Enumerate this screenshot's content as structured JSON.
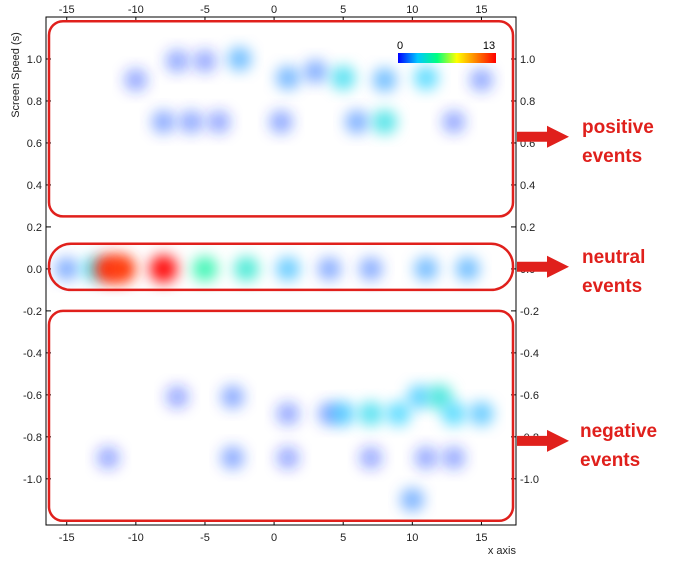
{
  "chart_data": {
    "type": "heatmap",
    "xlabel": "x axis",
    "ylabel": "Screen Speed (s)",
    "xlim": [
      -16.5,
      17.5
    ],
    "ylim": [
      -1.22,
      1.2
    ],
    "x_ticks": [
      -15,
      -10,
      -5,
      0,
      5,
      10,
      15
    ],
    "y_ticks": [
      1.0,
      0.8,
      0.6,
      0.4,
      0.2,
      0.0,
      -0.2,
      -0.4,
      -0.6,
      -0.8,
      -1.0
    ],
    "colorbar": {
      "min": 0,
      "max": 13,
      "min_label": "0",
      "max_label": "13",
      "colors": [
        "#0000ff",
        "#00c8ff",
        "#00ff80",
        "#ffff00",
        "#ff8000",
        "#ff0000"
      ]
    },
    "regions": [
      {
        "name": "positive",
        "label_lines": [
          "positive",
          "events"
        ],
        "y_range": [
          0.25,
          1.18
        ]
      },
      {
        "name": "neutral",
        "label_lines": [
          "neutral",
          "events"
        ],
        "y_range": [
          -0.1,
          0.12
        ]
      },
      {
        "name": "negative",
        "label_lines": [
          "negative",
          "events"
        ],
        "y_range": [
          -1.2,
          -0.2
        ]
      }
    ],
    "annotation_color": "#e0201c",
    "blobs": [
      {
        "x": -10,
        "y": 0.9,
        "value": 0.6
      },
      {
        "x": -7,
        "y": 0.99,
        "value": 0.7
      },
      {
        "x": -5,
        "y": 0.99,
        "value": 0.6
      },
      {
        "x": -2.5,
        "y": 1.0,
        "value": 1.8
      },
      {
        "x": 1,
        "y": 0.91,
        "value": 1.6
      },
      {
        "x": 3,
        "y": 0.94,
        "value": 1.2
      },
      {
        "x": 5,
        "y": 0.91,
        "value": 3.0
      },
      {
        "x": 8,
        "y": 0.9,
        "value": 1.8
      },
      {
        "x": 11,
        "y": 0.91,
        "value": 2.6
      },
      {
        "x": 15,
        "y": 0.9,
        "value": 0.7
      },
      {
        "x": -8,
        "y": 0.7,
        "value": 0.9
      },
      {
        "x": -6,
        "y": 0.7,
        "value": 0.8
      },
      {
        "x": -4,
        "y": 0.7,
        "value": 0.6
      },
      {
        "x": 0.5,
        "y": 0.7,
        "value": 0.8
      },
      {
        "x": 6,
        "y": 0.7,
        "value": 1.3
      },
      {
        "x": 8,
        "y": 0.7,
        "value": 3.3
      },
      {
        "x": 13,
        "y": 0.7,
        "value": 0.6
      },
      {
        "x": -15,
        "y": 0.0,
        "value": 1.2
      },
      {
        "x": -13,
        "y": 0.0,
        "value": 3.0
      },
      {
        "x": -12,
        "y": 0.0,
        "value": 12.3
      },
      {
        "x": -11,
        "y": 0.0,
        "value": 12.0
      },
      {
        "x": -8,
        "y": 0.0,
        "value": 13.0
      },
      {
        "x": -5,
        "y": 0.0,
        "value": 4.6
      },
      {
        "x": -2,
        "y": 0.0,
        "value": 3.8
      },
      {
        "x": 1,
        "y": 0.0,
        "value": 2.2
      },
      {
        "x": 4,
        "y": 0.0,
        "value": 1.0
      },
      {
        "x": 7,
        "y": 0.0,
        "value": 1.0
      },
      {
        "x": 11,
        "y": 0.0,
        "value": 1.7
      },
      {
        "x": 14,
        "y": 0.0,
        "value": 1.8
      },
      {
        "x": -7,
        "y": -0.61,
        "value": 0.5
      },
      {
        "x": -3,
        "y": -0.61,
        "value": 0.9
      },
      {
        "x": 1,
        "y": -0.69,
        "value": 0.6
      },
      {
        "x": 4,
        "y": -0.69,
        "value": 0.9
      },
      {
        "x": 5,
        "y": -0.69,
        "value": 2.4
      },
      {
        "x": 7,
        "y": -0.69,
        "value": 3.0
      },
      {
        "x": 9,
        "y": -0.69,
        "value": 2.6
      },
      {
        "x": 10.5,
        "y": -0.61,
        "value": 2.4
      },
      {
        "x": 12,
        "y": -0.61,
        "value": 3.6
      },
      {
        "x": 13,
        "y": -0.69,
        "value": 2.6
      },
      {
        "x": 15,
        "y": -0.69,
        "value": 2.2
      },
      {
        "x": -12,
        "y": -0.9,
        "value": 0.5
      },
      {
        "x": -3,
        "y": -0.9,
        "value": 0.9
      },
      {
        "x": 1,
        "y": -0.9,
        "value": 0.5
      },
      {
        "x": 7,
        "y": -0.9,
        "value": 0.5
      },
      {
        "x": 11,
        "y": -0.9,
        "value": 0.6
      },
      {
        "x": 13,
        "y": -0.9,
        "value": 0.6
      },
      {
        "x": 10,
        "y": -1.1,
        "value": 1.4
      }
    ]
  }
}
